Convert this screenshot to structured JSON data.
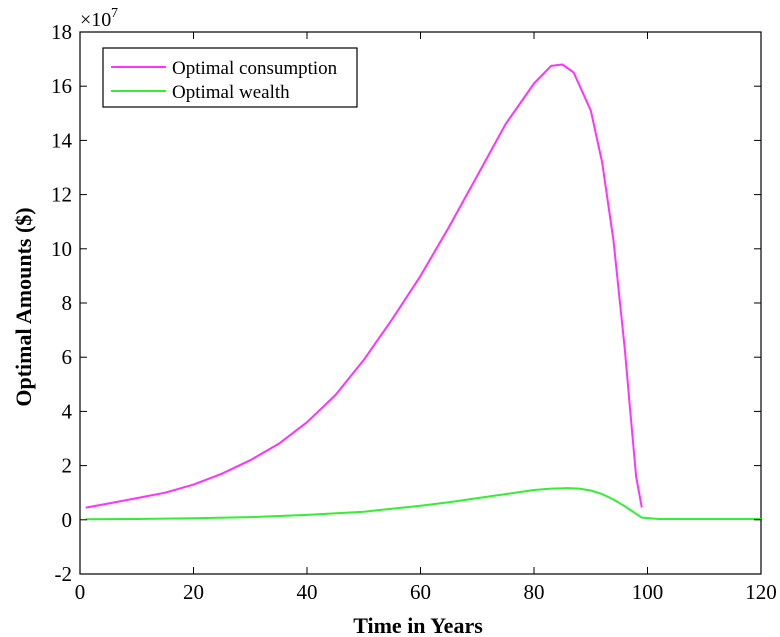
{
  "chart_data": {
    "type": "line",
    "xlabel": "Time in Years",
    "ylabel": "Optimal Amounts ($)",
    "y_multiplier_base": "×10",
    "y_multiplier_exp": "7",
    "xlim": [
      0,
      120
    ],
    "ylim": [
      -2,
      18
    ],
    "xticks": [
      0,
      20,
      40,
      60,
      80,
      100,
      120
    ],
    "yticks": [
      -2,
      0,
      2,
      4,
      6,
      8,
      10,
      12,
      14,
      16,
      18
    ],
    "grid": false,
    "legend_position": "top-left",
    "series": [
      {
        "name": "Optimal consumption",
        "color": "#ff33ff",
        "x": [
          1,
          5,
          10,
          15,
          20,
          25,
          30,
          35,
          40,
          45,
          50,
          55,
          60,
          65,
          70,
          75,
          80,
          83,
          85,
          87,
          90,
          92,
          94,
          96,
          97,
          98,
          99
        ],
        "y": [
          0.45,
          0.6,
          0.8,
          1.0,
          1.3,
          1.7,
          2.2,
          2.8,
          3.6,
          4.6,
          5.9,
          7.4,
          9.0,
          10.8,
          12.7,
          14.6,
          16.1,
          16.75,
          16.8,
          16.5,
          15.1,
          13.2,
          10.3,
          6.3,
          3.9,
          1.6,
          0.45
        ]
      },
      {
        "name": "Optimal wealth",
        "color": "#33ee33",
        "x": [
          1,
          10,
          20,
          30,
          40,
          50,
          60,
          65,
          70,
          75,
          80,
          83,
          86,
          88,
          90,
          92,
          94,
          96,
          98,
          99,
          102,
          110,
          120
        ],
        "y": [
          0.02,
          0.03,
          0.06,
          0.1,
          0.18,
          0.3,
          0.52,
          0.65,
          0.8,
          0.95,
          1.1,
          1.15,
          1.17,
          1.15,
          1.08,
          0.95,
          0.75,
          0.5,
          0.22,
          0.08,
          0.03,
          0.03,
          0.03
        ]
      }
    ]
  }
}
